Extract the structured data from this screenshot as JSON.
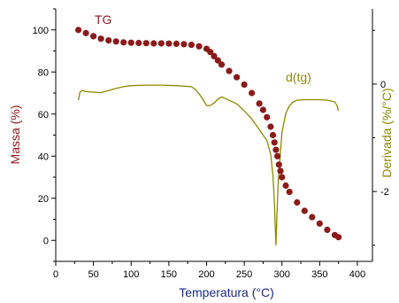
{
  "chart_data": {
    "type": "line",
    "title": "",
    "xlabel": "Temperatura (°C)",
    "ylabel_left": "Massa (%)",
    "ylabel_right": "Derivada (%/°C)",
    "xlim": [
      0,
      420
    ],
    "ylim_left": [
      -10,
      110
    ],
    "ylim_right": [
      -3.3,
      1.4
    ],
    "x_ticks": [
      0,
      50,
      100,
      150,
      200,
      250,
      300,
      350,
      400
    ],
    "y_left_ticks": [
      0,
      20,
      40,
      60,
      80,
      100
    ],
    "y_right_ticks": [
      -2,
      0
    ],
    "grid": false,
    "colors": {
      "tg": "#8b1a1a",
      "dtg": "#8a8a00",
      "axis_left": "#8b1a1a",
      "axis_right": "#8a8a00",
      "xlabel": "#1a2a8a"
    },
    "series": [
      {
        "name": "TG",
        "axis": "left",
        "style": "markers",
        "x": [
          30,
          40,
          50,
          60,
          70,
          80,
          90,
          100,
          110,
          120,
          130,
          140,
          150,
          160,
          170,
          180,
          190,
          200,
          205,
          210,
          215,
          220,
          230,
          240,
          250,
          260,
          270,
          275,
          280,
          285,
          288,
          290,
          292,
          294,
          296,
          298,
          300,
          305,
          310,
          320,
          330,
          340,
          350,
          360,
          370,
          375
        ],
        "values": [
          100,
          98.5,
          97,
          95.8,
          95,
          94.5,
          94.1,
          93.9,
          93.8,
          93.7,
          93.6,
          93.6,
          93.5,
          93.4,
          93.2,
          92.9,
          92.2,
          91,
          89.5,
          87.5,
          85.5,
          83.5,
          80.5,
          77.5,
          74,
          70,
          65,
          62,
          58.5,
          54,
          50,
          46.5,
          43,
          40,
          36,
          33,
          30,
          26,
          23,
          18,
          14,
          11,
          8,
          5,
          2.5,
          1.5
        ]
      },
      {
        "name": "d(tg)",
        "axis": "right",
        "style": "line",
        "x": [
          30,
          32,
          35,
          40,
          50,
          60,
          70,
          80,
          90,
          100,
          120,
          140,
          160,
          180,
          185,
          190,
          195,
          200,
          205,
          210,
          215,
          220,
          225,
          230,
          240,
          250,
          260,
          270,
          275,
          280,
          285,
          288,
          290,
          291,
          292,
          293,
          295,
          300,
          305,
          310,
          315,
          320,
          330,
          340,
          350,
          360,
          370,
          373,
          375
        ],
        "values": [
          -0.3,
          -0.15,
          -0.12,
          -0.14,
          -0.15,
          -0.16,
          -0.12,
          -0.08,
          -0.05,
          -0.03,
          -0.02,
          -0.02,
          -0.03,
          -0.05,
          -0.1,
          -0.18,
          -0.28,
          -0.4,
          -0.4,
          -0.35,
          -0.28,
          -0.24,
          -0.27,
          -0.3,
          -0.37,
          -0.5,
          -0.65,
          -0.85,
          -0.95,
          -1.05,
          -1.3,
          -1.7,
          -2.2,
          -2.6,
          -3.0,
          -2.6,
          -1.8,
          -0.9,
          -0.55,
          -0.4,
          -0.33,
          -0.3,
          -0.29,
          -0.29,
          -0.29,
          -0.3,
          -0.33,
          -0.4,
          -0.5
        ]
      }
    ],
    "labels": {
      "tg": "TG",
      "dtg": "d(tg)"
    }
  }
}
